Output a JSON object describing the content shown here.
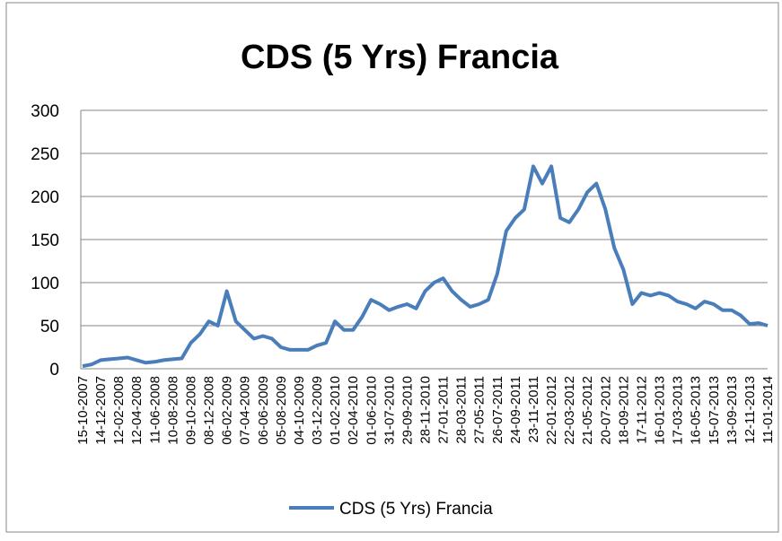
{
  "chart_data": {
    "type": "line",
    "title": "CDS (5 Yrs) Francia",
    "categories": [
      "15-10-2007",
      null,
      "14-12-2007",
      null,
      "12-02-2008",
      null,
      "12-04-2008",
      null,
      "11-06-2008",
      null,
      "10-08-2008",
      null,
      "09-10-2008",
      null,
      "08-12-2008",
      null,
      "06-02-2009",
      null,
      "07-04-2009",
      null,
      "06-06-2009",
      null,
      "05-08-2009",
      null,
      "04-10-2009",
      null,
      "03-12-2009",
      null,
      "01-02-2010",
      null,
      "02-04-2010",
      null,
      "01-06-2010",
      null,
      "31-07-2010",
      null,
      "29-09-2010",
      null,
      "28-11-2010",
      null,
      "27-01-2011",
      null,
      "28-03-2011",
      null,
      "27-05-2011",
      null,
      "26-07-2011",
      null,
      "24-09-2011",
      null,
      "23-11-2011",
      null,
      "22-01-2012",
      null,
      "22-03-2012",
      null,
      "21-05-2012",
      null,
      "20-07-2012",
      null,
      "18-09-2012",
      null,
      "17-11-2012",
      null,
      "16-01-2013",
      null,
      "17-03-2013",
      null,
      "16-05-2013",
      null,
      "15-07-2013",
      null,
      "13-09-2013",
      null,
      "12-11-2013",
      null,
      "11-01-2014"
    ],
    "series": [
      {
        "name": "CDS (5 Yrs) Francia",
        "color": "#4a7ebb",
        "values": [
          3,
          5,
          10,
          11,
          12,
          13,
          10,
          7,
          8,
          10,
          11,
          12,
          30,
          40,
          55,
          50,
          90,
          55,
          45,
          35,
          38,
          35,
          25,
          22,
          22,
          22,
          27,
          30,
          55,
          45,
          45,
          60,
          80,
          75,
          68,
          72,
          75,
          70,
          90,
          100,
          105,
          90,
          80,
          72,
          75,
          80,
          110,
          160,
          175,
          185,
          235,
          215,
          235,
          175,
          170,
          185,
          205,
          215,
          185,
          140,
          115,
          75,
          88,
          85,
          88,
          85,
          78,
          75,
          70,
          78,
          75,
          68,
          68,
          62,
          52,
          53,
          50
        ]
      }
    ],
    "ylim": [
      0,
      300
    ],
    "yticks": [
      0,
      50,
      100,
      150,
      200,
      250,
      300
    ],
    "grid": true,
    "legend": "bottom"
  }
}
